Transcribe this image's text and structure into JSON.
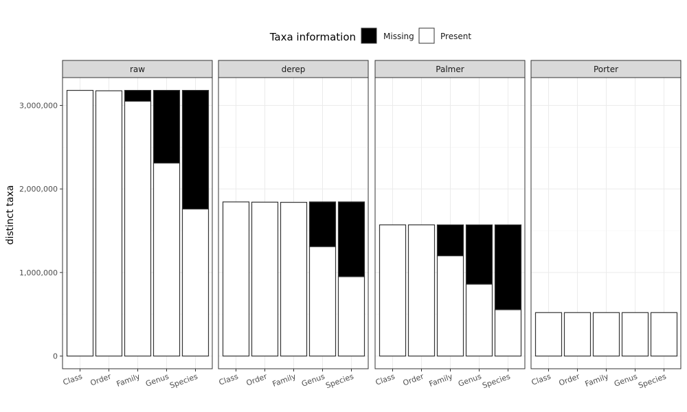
{
  "chart_data": {
    "type": "bar",
    "stacked": true,
    "ylabel": "distinct taxa",
    "xlabel": "",
    "ylim": [
      0,
      3300000
    ],
    "y_ticks": [
      0,
      1000000,
      2000000,
      3000000
    ],
    "y_tick_labels": [
      "0",
      "1,000,000",
      "2,000,000",
      "3,000,000"
    ],
    "categories": [
      "Class",
      "Order",
      "Family",
      "Genus",
      "Species"
    ],
    "legend": {
      "title": "Taxa information",
      "position": "top",
      "entries": [
        {
          "name": "Missing",
          "color": "#000000"
        },
        {
          "name": "Present",
          "color": "#ffffff"
        }
      ]
    },
    "grid": true,
    "panels": [
      {
        "title": "raw",
        "present": [
          3180000,
          3175000,
          3050000,
          2310000,
          1760000
        ],
        "missing": [
          0,
          0,
          130000,
          870000,
          1420000
        ]
      },
      {
        "title": "derep",
        "present": [
          1845000,
          1842000,
          1840000,
          1310000,
          950000
        ],
        "missing": [
          0,
          0,
          0,
          535000,
          895000
        ]
      },
      {
        "title": "Palmer",
        "present": [
          1570000,
          1570000,
          1200000,
          860000,
          555000
        ],
        "missing": [
          0,
          0,
          370000,
          710000,
          1015000
        ]
      },
      {
        "title": "Porter",
        "present": [
          520000,
          520000,
          520000,
          520000,
          520000
        ],
        "missing": [
          0,
          0,
          0,
          0,
          0
        ]
      }
    ]
  }
}
